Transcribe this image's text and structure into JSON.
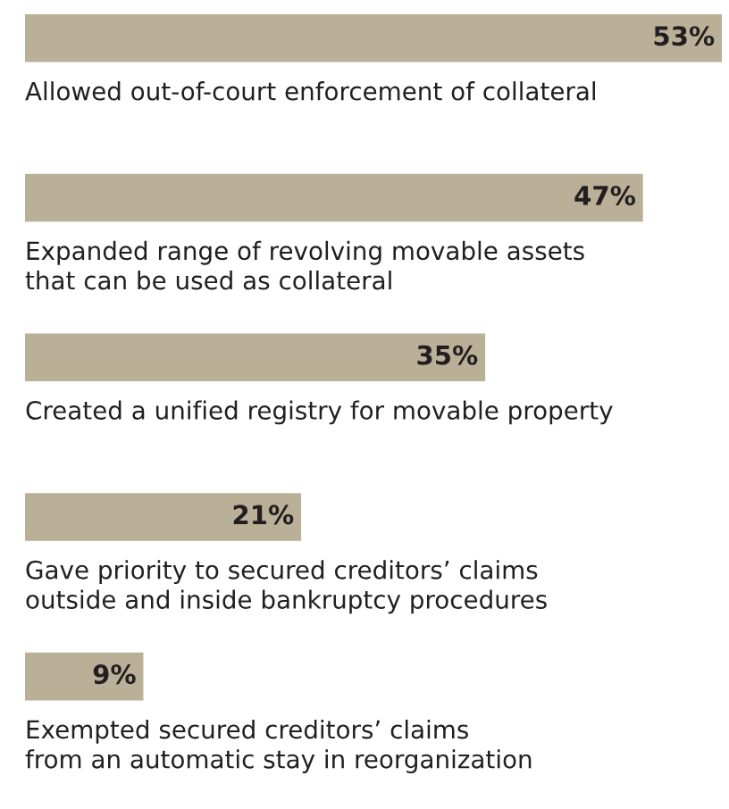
{
  "chart_data": {
    "type": "bar",
    "orientation": "horizontal",
    "categories": [
      "Allowed out-of-court enforcement of collateral",
      "Expanded range of revolving movable assets\nthat can be used as collateral",
      "Created a unified registry for movable property",
      "Gave priority to secured creditors’ claims\noutside and inside bankruptcy procedures",
      "Exempted secured creditors’ claims\nfrom an automatic stay in reorganization"
    ],
    "values": [
      53,
      47,
      35,
      21,
      9
    ],
    "value_labels": [
      "53%",
      "47%",
      "35%",
      "21%",
      "9%"
    ],
    "color": "#b9b097"
  }
}
